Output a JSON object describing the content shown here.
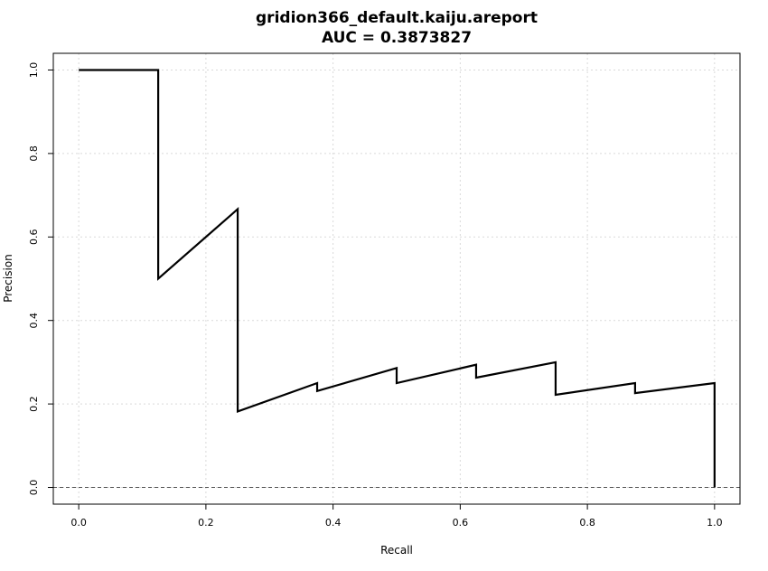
{
  "chart_data": {
    "type": "line",
    "title": "gridion366_default.kaiju.areport",
    "subtitle": "AUC = 0.3873827",
    "xlabel": "Recall",
    "ylabel": "Precision",
    "xlim": [
      -0.04,
      1.04
    ],
    "ylim": [
      -0.04,
      1.04
    ],
    "xticks": [
      0.0,
      0.2,
      0.4,
      0.6,
      0.8,
      1.0
    ],
    "yticks": [
      0.0,
      0.2,
      0.4,
      0.6,
      0.8,
      1.0
    ],
    "xtick_labels": [
      "0.0",
      "0.2",
      "0.4",
      "0.6",
      "0.8",
      "1.0"
    ],
    "ytick_labels": [
      "0.0",
      "0.2",
      "0.4",
      "0.6",
      "0.8",
      "1.0"
    ],
    "grid": true,
    "baseline": 0.0,
    "series": [
      {
        "color": "#000000",
        "x": [
          0.0,
          0.125,
          0.125,
          0.25,
          0.25,
          0.375,
          0.375,
          0.5,
          0.5,
          0.625,
          0.625,
          0.75,
          0.75,
          0.875,
          0.875,
          1.0,
          1.0
        ],
        "y": [
          1.0,
          1.0,
          0.5,
          0.6667,
          0.182,
          0.25,
          0.231,
          0.286,
          0.25,
          0.294,
          0.263,
          0.3,
          0.222,
          0.25,
          0.226,
          0.25,
          0.0
        ]
      }
    ]
  }
}
